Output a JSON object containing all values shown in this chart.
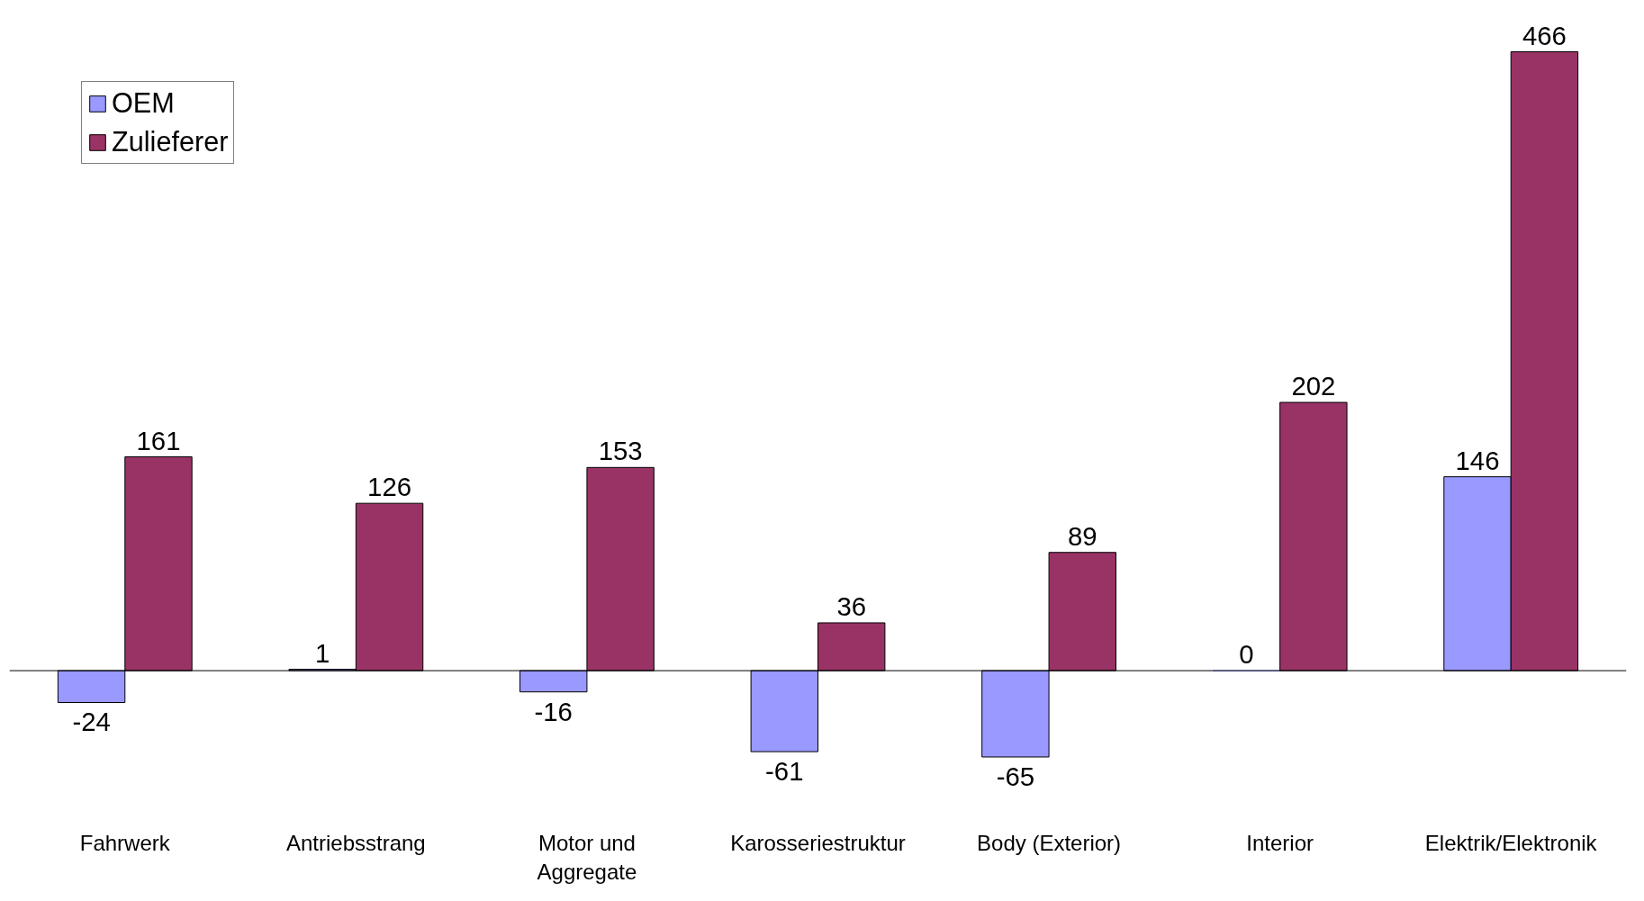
{
  "chart_data": {
    "type": "bar",
    "categories": [
      "Fahrwerk",
      "Antriebsstrang",
      "Motor und Aggregate",
      "Karosseriestruktur",
      "Body (Exterior)",
      "Interior",
      "Elektrik/Elektronik"
    ],
    "series": [
      {
        "name": "OEM",
        "color": "#9999ff",
        "values": [
          -24,
          1,
          -16,
          -61,
          -65,
          0,
          146
        ]
      },
      {
        "name": "Zulieferer",
        "color": "#993366",
        "values": [
          161,
          126,
          153,
          36,
          89,
          202,
          466
        ]
      }
    ],
    "data_labels": true,
    "legend": "top left",
    "grid": false
  }
}
